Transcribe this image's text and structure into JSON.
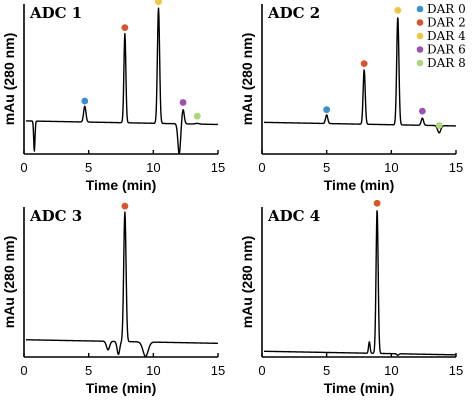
{
  "chart_data": [
    {
      "type": "line",
      "title": "ADC 1",
      "xlabel": "Time (min)",
      "ylabel": "mAu (280 nm)",
      "xlim": [
        0,
        15
      ],
      "xticks": [
        "0",
        "5",
        "10",
        "15"
      ],
      "ylim": [
        0,
        100
      ],
      "grid": false,
      "baseline": 23,
      "peaks": [
        {
          "time": 4.7,
          "height": 34,
          "width": 0.09,
          "marker": "DAR 0"
        },
        {
          "time": 7.8,
          "height": 85,
          "width": 0.075,
          "marker": "DAR 2"
        },
        {
          "time": 10.4,
          "height": 103,
          "width": 0.085,
          "marker": "DAR 4"
        },
        {
          "time": 12.3,
          "height": 33,
          "width": 0.09,
          "marker": "DAR 6"
        },
        {
          "time": 13.4,
          "height": 23.5,
          "width": 0.15,
          "marker": "DAR 8"
        },
        {
          "time": 0.8,
          "height": 2,
          "width": 0.05,
          "marker": null
        },
        {
          "time": 12.0,
          "height": 2,
          "width": 0.1,
          "marker": null
        }
      ]
    },
    {
      "type": "line",
      "title": "ADC 2",
      "xlabel": "Time (min)",
      "ylabel": "mAu (280 nm)",
      "xlim": [
        0,
        15
      ],
      "xticks": [
        "0",
        "5",
        "10",
        "15"
      ],
      "ylim": [
        0,
        100
      ],
      "grid": false,
      "baseline": 22,
      "peaks": [
        {
          "time": 5.0,
          "height": 28,
          "width": 0.085,
          "marker": "DAR 0"
        },
        {
          "time": 7.9,
          "height": 60,
          "width": 0.08,
          "marker": "DAR 2"
        },
        {
          "time": 10.5,
          "height": 97,
          "width": 0.085,
          "marker": "DAR 4"
        },
        {
          "time": 12.4,
          "height": 27,
          "width": 0.09,
          "marker": "DAR 6"
        },
        {
          "time": 13.7,
          "height": 17,
          "width": 0.12,
          "marker": "DAR 8"
        }
      ]
    },
    {
      "type": "line",
      "title": "ADC 3",
      "xlabel": "Time (min)",
      "ylabel": "mAu (280 nm)",
      "xlim": [
        0,
        15
      ],
      "xticks": [
        "0",
        "5",
        "10",
        "15"
      ],
      "ylim": [
        0,
        100
      ],
      "grid": false,
      "baseline": 12,
      "peaks": [
        {
          "time": 7.8,
          "height": 102,
          "width": 0.09,
          "marker": "DAR 2"
        },
        {
          "time": 6.5,
          "height": 6,
          "width": 0.12,
          "marker": null
        },
        {
          "time": 7.3,
          "height": 3,
          "width": 0.1,
          "marker": null
        },
        {
          "time": 9.4,
          "height": 2,
          "width": 0.2,
          "marker": null
        }
      ]
    },
    {
      "type": "line",
      "title": "ADC 4",
      "xlabel": "Time (min)",
      "ylabel": "mAu (280 nm)",
      "xlim": [
        0,
        15
      ],
      "xticks": [
        "0",
        "5",
        "10",
        "15"
      ],
      "ylim": [
        0,
        100
      ],
      "grid": false,
      "baseline": 4,
      "peaks": [
        {
          "time": 8.9,
          "height": 104,
          "width": 0.08,
          "marker": "DAR 2"
        },
        {
          "time": 8.3,
          "height": 12,
          "width": 0.06,
          "marker": null
        },
        {
          "time": 10.5,
          "height": 3,
          "width": 0.08,
          "marker": null
        }
      ]
    }
  ],
  "legend": {
    "placement": "top-right",
    "items": [
      {
        "label": "DAR 0",
        "color": "#3a8fd0"
      },
      {
        "label": "DAR 2",
        "color": "#d9532b"
      },
      {
        "label": "DAR 4",
        "color": "#f2c443"
      },
      {
        "label": "DAR 6",
        "color": "#9b52b0"
      },
      {
        "label": "DAR 8",
        "color": "#a8d878"
      }
    ]
  }
}
